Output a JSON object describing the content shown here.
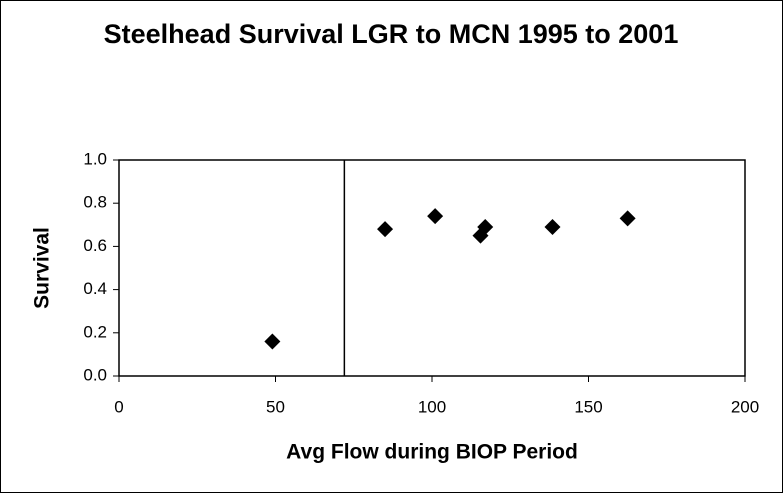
{
  "chart_data": {
    "type": "scatter",
    "title": "Steelhead Survival LGR to MCN 1995 to 2001",
    "x_label": "Avg Flow during BIOP Period",
    "y_label": "Survival",
    "x": [
      49,
      85,
      101,
      115.5,
      117,
      138.5,
      162.5
    ],
    "values": [
      0.16,
      0.68,
      0.74,
      0.65,
      0.69,
      0.69,
      0.73
    ],
    "color": "#000000",
    "reference_x": 72,
    "xlim": [
      0,
      200
    ],
    "xticks": [
      0,
      50,
      100,
      150,
      200
    ],
    "ylim": [
      0,
      1
    ],
    "yticks": [
      {
        "value": 0,
        "label": "0.0"
      },
      0.2,
      0.4,
      0.6,
      0.8,
      {
        "value": 1,
        "label": "1.0"
      }
    ],
    "grid": false
  }
}
